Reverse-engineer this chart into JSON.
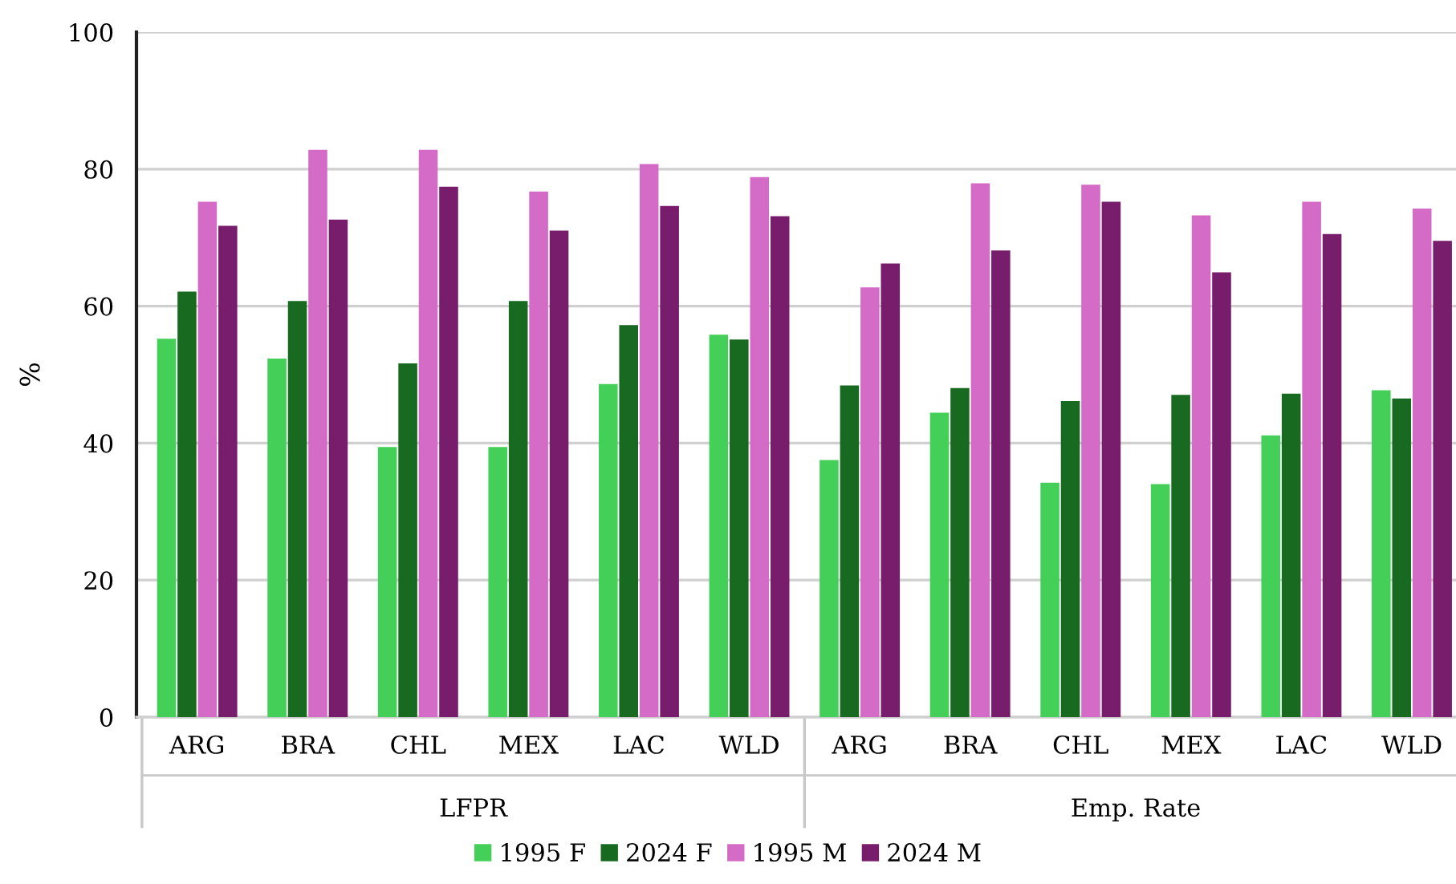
{
  "chart_data": {
    "type": "bar",
    "ylabel": "%",
    "categories": [
      "ARG",
      "BRA",
      "CHL",
      "MEX",
      "LAC",
      "WLD",
      "ARG",
      "BRA",
      "CHL",
      "MEX",
      "LAC",
      "WLD"
    ],
    "series": [
      {
        "name": "1995 F",
        "color": "#44d058",
        "values": [
          55.1,
          52.2,
          39.3,
          39.3,
          48.5,
          55.7,
          37.4,
          44.3,
          34.1,
          33.9,
          41.0,
          47.6
        ]
      },
      {
        "name": "2024 F",
        "color": "#176a20",
        "values": [
          62.0,
          60.6,
          51.5,
          60.6,
          57.1,
          55.0,
          48.3,
          47.9,
          46.0,
          46.9,
          47.1,
          46.4
        ]
      },
      {
        "name": "1995 M",
        "color": "#d46bc6",
        "values": [
          75.1,
          82.7,
          82.7,
          76.6,
          80.6,
          78.7,
          62.6,
          77.8,
          77.6,
          73.1,
          75.1,
          74.1
        ]
      },
      {
        "name": "2024 M",
        "color": "#781c6c",
        "values": [
          71.6,
          72.5,
          77.3,
          70.9,
          74.5,
          73.0,
          66.1,
          68.0,
          75.1,
          64.8,
          70.4,
          69.4
        ]
      }
    ],
    "annotations": [
      "LFPR",
      "Emp. Rate"
    ],
    "ylim": [
      0,
      100
    ],
    "yticks": [
      0,
      20,
      40,
      60,
      80,
      100
    ],
    "grid": "y",
    "legend": "bottom"
  }
}
